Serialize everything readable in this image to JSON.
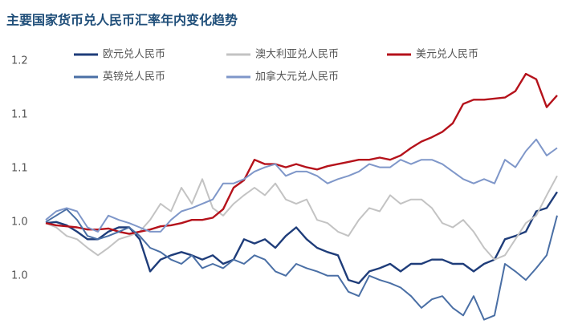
{
  "chart_data": {
    "type": "line",
    "title": "主要国家货币兑人民币汇率年内变化趋势",
    "categories": [
      null,
      null,
      null,
      null,
      null,
      null,
      null,
      null,
      null,
      null,
      null,
      null,
      null,
      null,
      null,
      null,
      null,
      null,
      null,
      null,
      null,
      null,
      null,
      null,
      null,
      null,
      null,
      null,
      null,
      null,
      null,
      null,
      null,
      null,
      null,
      null,
      null,
      null,
      null,
      null,
      null,
      null,
      null,
      null,
      null,
      null,
      null,
      null,
      null,
      null
    ],
    "series": [
      {
        "name": "欧元兑人民币",
        "color": "#1f3d7a",
        "values": [
          0.999,
          1.0,
          0.997,
          0.991,
          0.984,
          0.984,
          0.991,
          0.995,
          0.995,
          0.984,
          0.954,
          0.965,
          0.969,
          0.972,
          0.969,
          0.965,
          0.969,
          0.961,
          0.965,
          0.984,
          0.98,
          0.984,
          0.976,
          0.987,
          0.995,
          0.984,
          0.976,
          0.972,
          0.969,
          0.946,
          0.943,
          0.954,
          0.957,
          0.961,
          0.954,
          0.961,
          0.961,
          0.965,
          0.965,
          0.961,
          0.961,
          0.954,
          0.961,
          0.965,
          0.984,
          0.987,
          0.991,
          1.01,
          1.013,
          1.028
        ]
      },
      {
        "name": "澳大利亚兑人民币",
        "color": "#c3c3c3",
        "values": [
          0.999,
          0.995,
          0.987,
          0.984,
          0.976,
          0.969,
          0.976,
          0.984,
          0.987,
          0.991,
          1.002,
          1.017,
          1.01,
          1.032,
          1.017,
          1.04,
          1.013,
          1.006,
          1.017,
          1.025,
          1.032,
          1.025,
          1.036,
          1.021,
          1.017,
          1.021,
          1.002,
          0.999,
          0.991,
          0.987,
          1.002,
          1.013,
          1.01,
          1.025,
          1.017,
          1.021,
          1.021,
          1.013,
          0.999,
          0.995,
          1.002,
          0.991,
          0.976,
          0.965,
          0.969,
          0.984,
          0.999,
          1.006,
          1.025,
          1.043
        ]
      },
      {
        "name": "美元兑人民币",
        "color": "#b5121b",
        "values": [
          0.999,
          0.997,
          0.996,
          0.995,
          0.993,
          0.993,
          0.994,
          0.991,
          0.989,
          0.991,
          0.993,
          0.996,
          0.997,
          0.999,
          1.002,
          1.002,
          1.004,
          1.012,
          1.032,
          1.039,
          1.058,
          1.054,
          1.054,
          1.051,
          1.054,
          1.051,
          1.049,
          1.052,
          1.054,
          1.056,
          1.058,
          1.058,
          1.06,
          1.058,
          1.062,
          1.069,
          1.075,
          1.079,
          1.084,
          1.092,
          1.11,
          1.114,
          1.114,
          1.115,
          1.116,
          1.122,
          1.138,
          1.133,
          1.107,
          1.118
        ]
      },
      {
        "name": "英镑兑人民币",
        "color": "#4a6fa5",
        "values": [
          1.0,
          1.006,
          1.012,
          1.002,
          0.987,
          0.984,
          0.987,
          0.991,
          0.995,
          0.987,
          0.976,
          0.972,
          0.965,
          0.961,
          0.969,
          0.957,
          0.961,
          0.957,
          0.965,
          0.961,
          0.969,
          0.965,
          0.954,
          0.95,
          0.961,
          0.957,
          0.954,
          0.95,
          0.95,
          0.935,
          0.931,
          0.95,
          0.946,
          0.943,
          0.939,
          0.931,
          0.92,
          0.928,
          0.931,
          0.92,
          0.913,
          0.931,
          0.909,
          0.913,
          0.961,
          0.954,
          0.946,
          0.957,
          0.969,
          1.006
        ]
      },
      {
        "name": "加拿大元兑人民币",
        "color": "#7f97c9",
        "values": [
          1.002,
          1.01,
          1.013,
          1.01,
          0.995,
          0.991,
          1.006,
          1.002,
          0.999,
          0.995,
          0.991,
          0.991,
          1.002,
          1.01,
          1.013,
          1.017,
          1.021,
          1.036,
          1.036,
          1.04,
          1.047,
          1.051,
          1.054,
          1.043,
          1.047,
          1.047,
          1.043,
          1.036,
          1.04,
          1.043,
          1.047,
          1.054,
          1.051,
          1.051,
          1.058,
          1.054,
          1.058,
          1.058,
          1.054,
          1.047,
          1.04,
          1.036,
          1.04,
          1.036,
          1.058,
          1.051,
          1.066,
          1.077,
          1.062,
          1.069
        ]
      }
    ],
    "ylim": [
      0.905,
      1.165
    ],
    "yticks": [
      {
        "value": 1.15,
        "label": "1.2"
      },
      1.1,
      {
        "value": 1.05,
        "label": "1.1"
      },
      {
        "value": 1.0,
        "label": "1.0"
      },
      {
        "value": 0.95,
        "label": "1.0"
      }
    ],
    "grid": false
  }
}
